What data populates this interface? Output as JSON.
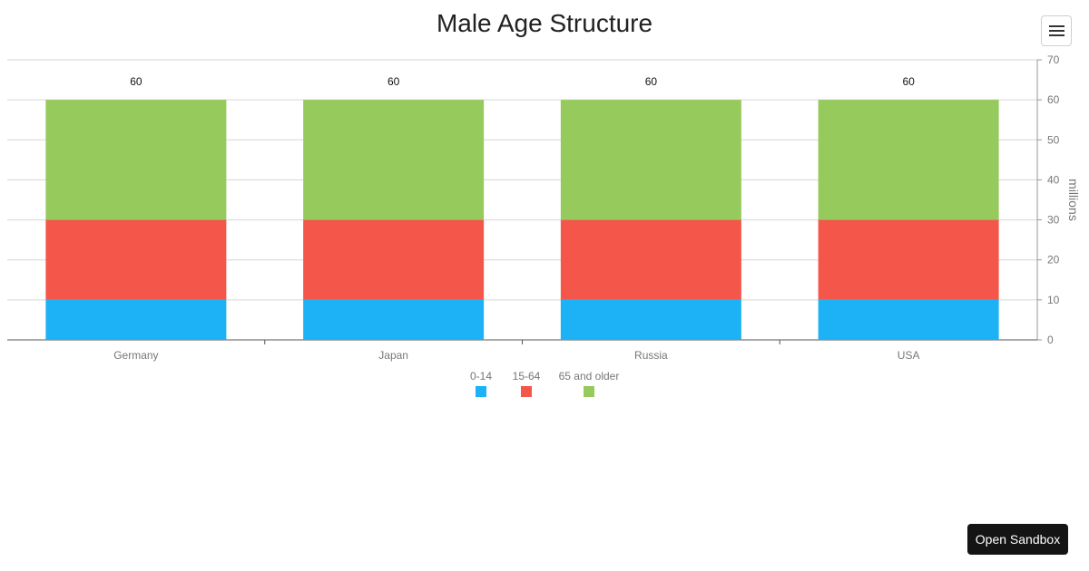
{
  "chart_data": {
    "type": "bar",
    "stacked": true,
    "title": "Male Age Structure",
    "xlabel": "",
    "ylabel": "millions",
    "y_axis_position": "right",
    "ylim": [
      0,
      70
    ],
    "yticks": [
      0,
      10,
      20,
      30,
      40,
      50,
      60,
      70
    ],
    "grid": true,
    "legend_position": "bottom-center",
    "categories": [
      "Germany",
      "Japan",
      "Russia",
      "USA"
    ],
    "series": [
      {
        "name": "0-14",
        "color": "#1db2f5",
        "values": [
          10,
          10,
          10,
          10
        ]
      },
      {
        "name": "15-64",
        "color": "#f5564a",
        "values": [
          20,
          20,
          20,
          20
        ]
      },
      {
        "name": "65 and older",
        "color": "#97ca5d",
        "values": [
          30,
          30,
          30,
          30
        ]
      }
    ],
    "total_labels": [
      "60",
      "60",
      "60",
      "60"
    ]
  },
  "toolbar": {
    "menu_icon": "hamburger-menu-icon"
  },
  "sandbox": {
    "label": "Open Sandbox"
  }
}
